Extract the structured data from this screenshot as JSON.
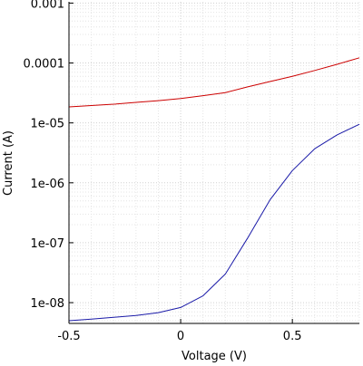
{
  "chart_data": {
    "type": "line",
    "title": "",
    "xlabel": "Voltage (V)",
    "ylabel": "Current (A)",
    "xlim": [
      -0.5,
      0.8
    ],
    "ylim": [
      4.5e-09,
      0.00105
    ],
    "yscale": "log",
    "grid": true,
    "x_ticks": [
      -0.5,
      0,
      0.5
    ],
    "x_tick_labels": [
      "-0.5",
      "0",
      "0.5"
    ],
    "y_ticks": [
      1e-08,
      1e-07,
      1e-06,
      1e-05,
      0.0001,
      0.001
    ],
    "y_tick_labels": [
      "1e-08",
      "1e-07",
      "1e-06",
      "1e-05",
      "0.0001",
      "0.001"
    ],
    "x": [
      -0.5,
      -0.4,
      -0.3,
      -0.2,
      -0.1,
      0.0,
      0.1,
      0.2,
      0.3,
      0.4,
      0.5,
      0.6,
      0.7,
      0.8
    ],
    "series": [
      {
        "color": "#cc0000",
        "values": [
          1.85e-05,
          1.95e-05,
          2.05e-05,
          2.2e-05,
          2.35e-05,
          2.55e-05,
          2.85e-05,
          3.2e-05,
          4e-05,
          4.9e-05,
          6e-05,
          7.5e-05,
          9.5e-05,
          0.000122
        ]
      },
      {
        "color": "#1a1aa8",
        "values": [
          5e-09,
          5.3e-09,
          5.7e-09,
          6.1e-09,
          6.8e-09,
          8.3e-09,
          1.3e-08,
          3e-08,
          1.2e-07,
          5.2e-07,
          1.6e-06,
          3.7e-06,
          6.3e-06,
          9.5e-06
        ]
      }
    ]
  }
}
